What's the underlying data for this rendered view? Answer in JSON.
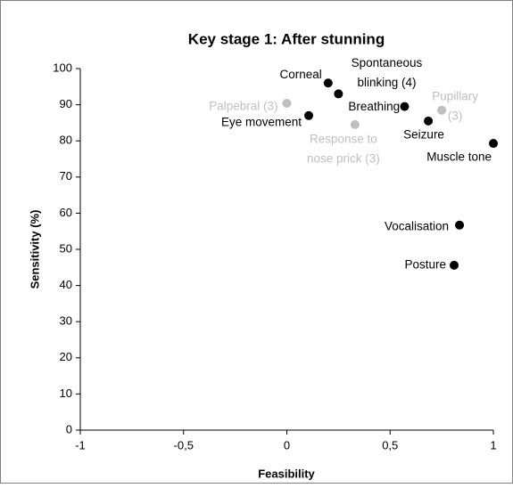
{
  "chart_data": {
    "type": "scatter",
    "title": "Key stage 1: After stunning",
    "xlabel": "Feasibility",
    "ylabel": "Sensitivity (%)",
    "xlim": [
      -1,
      1
    ],
    "xticks": [
      -1,
      {
        "value": -0.5,
        "label": "-0,5"
      },
      0,
      {
        "value": 0.5,
        "label": "0,5"
      },
      1
    ],
    "ylim": [
      0,
      100
    ],
    "yticks": [
      0,
      10,
      20,
      30,
      40,
      50,
      60,
      70,
      80,
      90,
      100
    ],
    "points": [
      {
        "label": [
          "Corneal"
        ],
        "x": 0.2,
        "y": 96,
        "color": "#000000"
      },
      {
        "label": [
          "Breathing"
        ],
        "x": 0.25,
        "y": 93,
        "color": "#000000"
      },
      {
        "label": [
          "Spontaneous",
          "blinking (4)"
        ],
        "x": 0.57,
        "y": 89.5,
        "color": "#000000"
      },
      {
        "label": [
          "Pupillary",
          "(3)"
        ],
        "x": 0.75,
        "y": 88.5,
        "color": "#bfbfbf"
      },
      {
        "label": [
          "Seizure"
        ],
        "x": 0.685,
        "y": 85.5,
        "color": "#000000"
      },
      {
        "label": [
          "Muscle tone"
        ],
        "x": 1,
        "y": 79.3,
        "color": "#000000"
      },
      {
        "label": [
          "Palpebral (3)"
        ],
        "x": 0,
        "y": 90.4,
        "color": "#bfbfbf"
      },
      {
        "label": [
          "Eye movement"
        ],
        "x": 0.106,
        "y": 87,
        "color": "#000000"
      },
      {
        "label": [
          "Response to",
          "nose prick (3)"
        ],
        "x": 0.33,
        "y": 84.5,
        "color": "#bfbfbf"
      },
      {
        "label": [
          "Vocalisation"
        ],
        "x": 0.836,
        "y": 56.7,
        "color": "#000000"
      },
      {
        "label": [
          "Posture"
        ],
        "x": 0.81,
        "y": 45.6,
        "color": "#000000"
      }
    ]
  }
}
